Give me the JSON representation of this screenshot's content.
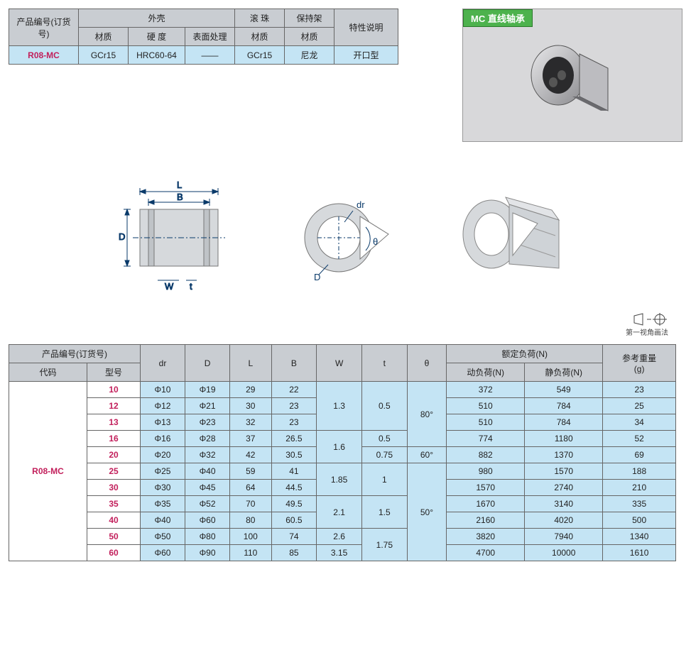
{
  "product_tag": "MC 直线轴承",
  "proj_note": "第一视角画法",
  "spec_table": {
    "headers": {
      "part_no": "产品编号(订货号)",
      "shell": "外壳",
      "ball": "滚 珠",
      "retainer": "保持架",
      "feature": "特性说明",
      "material": "材质",
      "hardness": "硬 度",
      "surface": "表面处理"
    },
    "row": {
      "code": "R08-MC",
      "shell_mat": "GCr15",
      "shell_hard": "HRC60-64",
      "shell_surf": "——",
      "ball_mat": "GCr15",
      "ret_mat": "尼龙",
      "feature": "开口型"
    }
  },
  "diagram_labels": {
    "L": "L",
    "B": "B",
    "D": "D",
    "W": "W",
    "t": "t",
    "dr": "dr",
    "theta": "θ"
  },
  "dim_table": {
    "headers": {
      "part_no": "产品编号(订货号)",
      "code": "代码",
      "model": "型号",
      "dr": "dr",
      "D": "D",
      "L": "L",
      "B": "B",
      "W": "W",
      "t": "t",
      "theta": "θ",
      "rated": "额定负荷(N)",
      "dyn": "动负荷(N)",
      "stat": "静负荷(N)",
      "weight": "参考重量\n(g)"
    },
    "code": "R08-MC",
    "rows": [
      {
        "model": "10",
        "dr": "Φ10",
        "D": "Φ19",
        "L": "29",
        "B": "22",
        "dyn": "372",
        "stat": "549",
        "wt": "23"
      },
      {
        "model": "12",
        "dr": "Φ12",
        "D": "Φ21",
        "L": "30",
        "B": "23",
        "dyn": "510",
        "stat": "784",
        "wt": "25"
      },
      {
        "model": "13",
        "dr": "Φ13",
        "D": "Φ23",
        "L": "32",
        "B": "23",
        "dyn": "510",
        "stat": "784",
        "wt": "34"
      },
      {
        "model": "16",
        "dr": "Φ16",
        "D": "Φ28",
        "L": "37",
        "B": "26.5",
        "dyn": "774",
        "stat": "1180",
        "wt": "52"
      },
      {
        "model": "20",
        "dr": "Φ20",
        "D": "Φ32",
        "L": "42",
        "B": "30.5",
        "dyn": "882",
        "stat": "1370",
        "wt": "69"
      },
      {
        "model": "25",
        "dr": "Φ25",
        "D": "Φ40",
        "L": "59",
        "B": "41",
        "dyn": "980",
        "stat": "1570",
        "wt": "188"
      },
      {
        "model": "30",
        "dr": "Φ30",
        "D": "Φ45",
        "L": "64",
        "B": "44.5",
        "dyn": "1570",
        "stat": "2740",
        "wt": "210"
      },
      {
        "model": "35",
        "dr": "Φ35",
        "D": "Φ52",
        "L": "70",
        "B": "49.5",
        "dyn": "1670",
        "stat": "3140",
        "wt": "335"
      },
      {
        "model": "40",
        "dr": "Φ40",
        "D": "Φ60",
        "L": "80",
        "B": "60.5",
        "dyn": "2160",
        "stat": "4020",
        "wt": "500"
      },
      {
        "model": "50",
        "dr": "Φ50",
        "D": "Φ80",
        "L": "100",
        "B": "74",
        "dyn": "3820",
        "stat": "7940",
        "wt": "1340"
      },
      {
        "model": "60",
        "dr": "Φ60",
        "D": "Φ90",
        "L": "110",
        "B": "85",
        "dyn": "4700",
        "stat": "10000",
        "wt": "1610"
      }
    ],
    "W_groups": [
      {
        "val": "1.3",
        "span": 3
      },
      {
        "val": "1.6",
        "span": 2
      },
      {
        "val": "1.85",
        "span": 2
      },
      {
        "val": "2.1",
        "span": 2
      },
      {
        "val": "2.6",
        "span": 1
      },
      {
        "val": "3.15",
        "span": 1
      }
    ],
    "t_groups": [
      {
        "val": "0.5",
        "span": 3
      },
      {
        "val": "0.5",
        "span": 1
      },
      {
        "val": "0.75",
        "span": 1
      },
      {
        "val": "1",
        "span": 2
      },
      {
        "val": "1.5",
        "span": 2
      },
      {
        "val": "1.75",
        "span": 2
      }
    ],
    "theta_groups": [
      {
        "val": "80°",
        "span": 4
      },
      {
        "val": "60°",
        "span": 1
      },
      {
        "val": "50°",
        "span": 6
      }
    ]
  },
  "colors": {
    "header_bg": "#c9cdd2",
    "data_bg": "#c4e4f4",
    "accent": "#c21f5b",
    "tag_bg": "#4db24d"
  }
}
